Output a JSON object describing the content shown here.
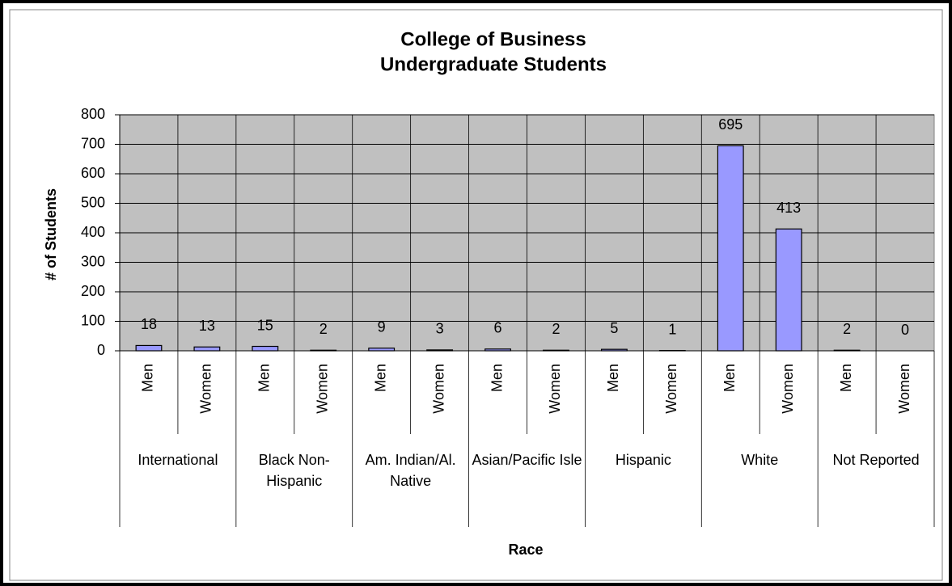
{
  "chart_data": {
    "type": "bar",
    "title": [
      "College of Business",
      "Undergraduate Students"
    ],
    "y_label": "# of Students",
    "x_label": "Race",
    "groups": [
      "International",
      "Black Non-Hispanic",
      "Am. Indian/Al. Native",
      "Asian/Pacific Isle",
      "Hispanic",
      "White",
      "Not Reported"
    ],
    "categories": [
      "Men",
      "Women",
      "Men",
      "Women",
      "Men",
      "Women",
      "Men",
      "Women",
      "Men",
      "Women",
      "Men",
      "Women",
      "Men",
      "Women"
    ],
    "values": [
      18,
      13,
      15,
      2,
      9,
      3,
      6,
      2,
      5,
      1,
      695,
      413,
      2,
      0
    ],
    "color": "#9999ff",
    "plot_background": "#c0c0c0",
    "ylim": [
      0,
      800
    ],
    "yticks": [
      0,
      100,
      200,
      300,
      400,
      500,
      600,
      700,
      800
    ],
    "grid": true
  }
}
